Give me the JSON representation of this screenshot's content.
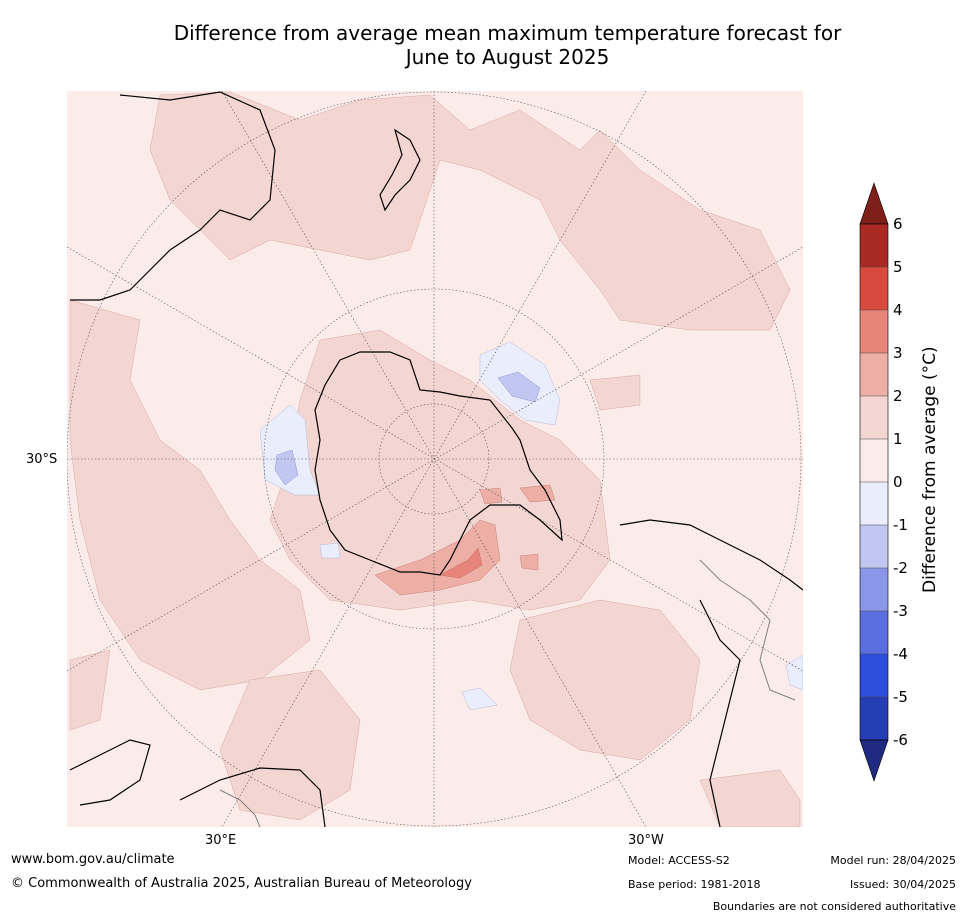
{
  "title": {
    "line1": "Difference from average mean maximum temperature forecast for",
    "line2": "June to August 2025"
  },
  "map": {
    "projection": "south polar stereographic",
    "lat_label": "30°S",
    "lon_labels": [
      "30°E",
      "30°W"
    ],
    "land_outline_color": "#000000",
    "boundary_color": "#808080"
  },
  "colorbar": {
    "label": "Difference from average (°C)",
    "ticks": [
      "6",
      "5",
      "4",
      "3",
      "2",
      "1",
      "0",
      "-1",
      "-2",
      "-3",
      "-4",
      "-5",
      "-6"
    ],
    "bins": [
      {
        "range": "above 6",
        "color": "#7f1f1a"
      },
      {
        "range": "5 to 6",
        "color": "#a92a22"
      },
      {
        "range": "4 to 5",
        "color": "#d94a3e"
      },
      {
        "range": "3 to 4",
        "color": "#e8857b"
      },
      {
        "range": "2 to 3",
        "color": "#edaea6"
      },
      {
        "range": "1 to 2",
        "color": "#f3d5d1"
      },
      {
        "range": "0 to 1",
        "color": "#fbecea"
      },
      {
        "range": "-1 to 0",
        "color": "#eaedfb"
      },
      {
        "range": "-2 to -1",
        "color": "#c1c7f0"
      },
      {
        "range": "-3 to -2",
        "color": "#8a96ea"
      },
      {
        "range": "-4 to -3",
        "color": "#5b6ee0"
      },
      {
        "range": "-5 to -4",
        "color": "#2e4fde"
      },
      {
        "range": "-6 to -5",
        "color": "#263eb3"
      },
      {
        "range": "below -6",
        "color": "#1f2a80"
      }
    ]
  },
  "footer": {
    "website": "www.bom.gov.au/climate",
    "copyright": "© Commonwealth of Australia 2025, Australian Bureau of Meteorology",
    "model": "Model: ACCESS-S2",
    "base_period": "Base period: 1981-2018",
    "model_run": "Model run: 28/04/2025",
    "issued": "Issued: 30/04/2025",
    "disclaimer": "Boundaries are not considered authoritative"
  }
}
